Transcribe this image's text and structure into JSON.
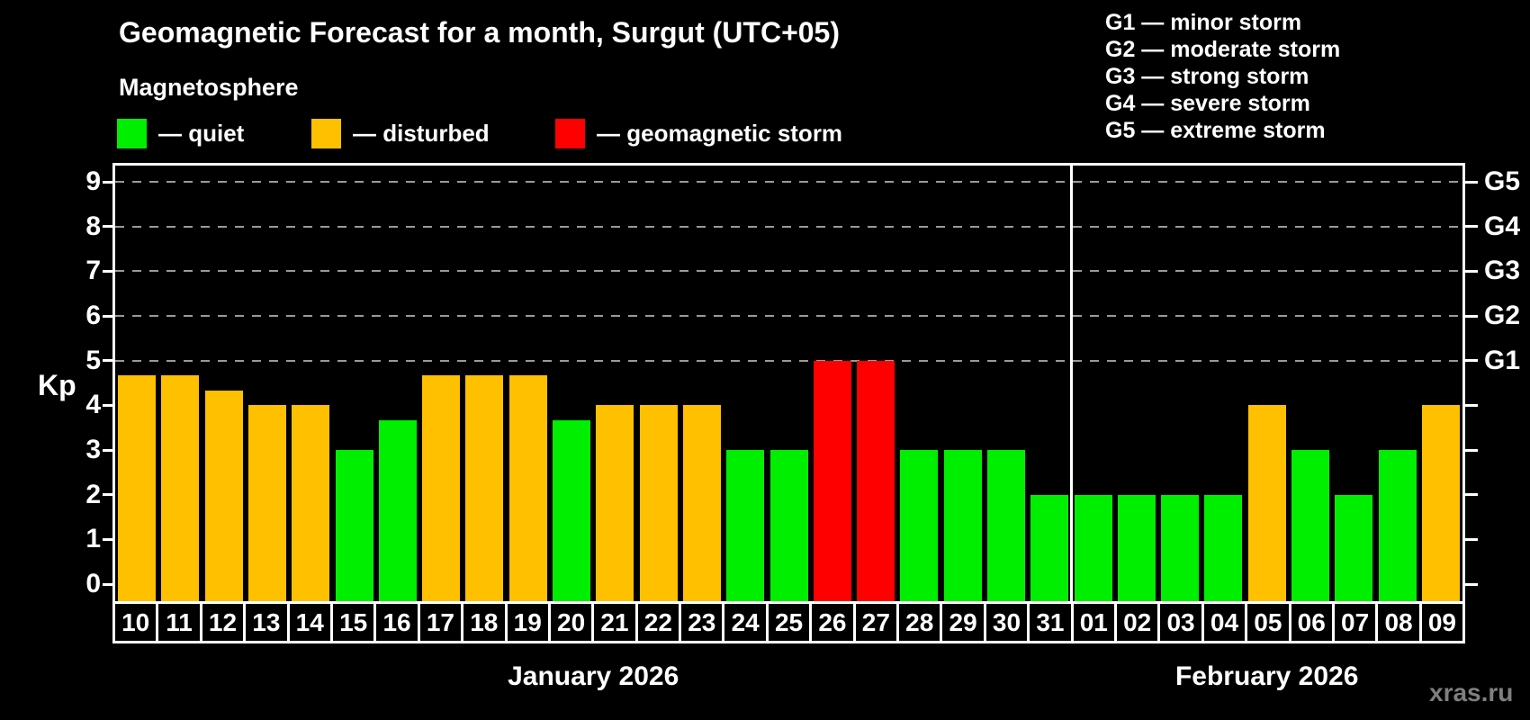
{
  "header": {
    "title": "Geomagnetic Forecast for a month, Surgut (UTC+05)",
    "subtitle": "Magnetosphere"
  },
  "legend": {
    "items": [
      {
        "key": "quiet",
        "label": "— quiet"
      },
      {
        "key": "disturbed",
        "label": "— disturbed"
      },
      {
        "key": "storm",
        "label": "— geomagnetic storm"
      }
    ]
  },
  "g_legend": {
    "items": [
      {
        "code": "G1",
        "text": "G1 — minor storm"
      },
      {
        "code": "G2",
        "text": "G2 — moderate storm"
      },
      {
        "code": "G3",
        "text": "G3 — strong storm"
      },
      {
        "code": "G4",
        "text": "G4 — severe storm"
      },
      {
        "code": "G5",
        "text": "G5 — extreme storm"
      }
    ]
  },
  "watermark": "xras.ru",
  "colors": {
    "quiet": "#00ee00",
    "disturbed": "#ffc000",
    "storm": "#ff0000",
    "grid": "#9a9a9a",
    "axis": "#ffffff",
    "background": "#000000",
    "watermark": "#7f7f7f"
  },
  "chart_data": {
    "type": "bar",
    "title": "Geomagnetic Forecast for a month, Surgut (UTC+05)",
    "subtitle": "Magnetosphere",
    "ylabel": "Kp",
    "ylim": [
      0,
      9
    ],
    "yticks": [
      0,
      1,
      2,
      3,
      4,
      5,
      6,
      7,
      8,
      9
    ],
    "gridlines_at_kp": [
      5,
      6,
      7,
      8,
      9
    ],
    "right_axis_labels": [
      {
        "kp": 5,
        "label": "G1"
      },
      {
        "kp": 6,
        "label": "G2"
      },
      {
        "kp": 7,
        "label": "G3"
      },
      {
        "kp": 8,
        "label": "G4"
      },
      {
        "kp": 9,
        "label": "G5"
      }
    ],
    "months": [
      {
        "label": "January 2026",
        "start_index": 0,
        "end_index": 21
      },
      {
        "label": "February 2026",
        "start_index": 22,
        "end_index": 30
      }
    ],
    "bars": [
      {
        "day": "10",
        "kp": 4.67,
        "status": "disturbed"
      },
      {
        "day": "11",
        "kp": 4.67,
        "status": "disturbed"
      },
      {
        "day": "12",
        "kp": 4.33,
        "status": "disturbed"
      },
      {
        "day": "13",
        "kp": 4.0,
        "status": "disturbed"
      },
      {
        "day": "14",
        "kp": 4.0,
        "status": "disturbed"
      },
      {
        "day": "15",
        "kp": 3.0,
        "status": "quiet"
      },
      {
        "day": "16",
        "kp": 3.67,
        "status": "quiet"
      },
      {
        "day": "17",
        "kp": 4.67,
        "status": "disturbed"
      },
      {
        "day": "18",
        "kp": 4.67,
        "status": "disturbed"
      },
      {
        "day": "19",
        "kp": 4.67,
        "status": "disturbed"
      },
      {
        "day": "20",
        "kp": 3.67,
        "status": "quiet"
      },
      {
        "day": "21",
        "kp": 4.0,
        "status": "disturbed"
      },
      {
        "day": "22",
        "kp": 4.0,
        "status": "disturbed"
      },
      {
        "day": "23",
        "kp": 4.0,
        "status": "disturbed"
      },
      {
        "day": "24",
        "kp": 3.0,
        "status": "quiet"
      },
      {
        "day": "25",
        "kp": 3.0,
        "status": "quiet"
      },
      {
        "day": "26",
        "kp": 5.0,
        "status": "storm"
      },
      {
        "day": "27",
        "kp": 5.0,
        "status": "storm"
      },
      {
        "day": "28",
        "kp": 3.0,
        "status": "quiet"
      },
      {
        "day": "29",
        "kp": 3.0,
        "status": "quiet"
      },
      {
        "day": "30",
        "kp": 3.0,
        "status": "quiet"
      },
      {
        "day": "31",
        "kp": 2.0,
        "status": "quiet"
      },
      {
        "day": "01",
        "kp": 2.0,
        "status": "quiet"
      },
      {
        "day": "02",
        "kp": 2.0,
        "status": "quiet"
      },
      {
        "day": "03",
        "kp": 2.0,
        "status": "quiet"
      },
      {
        "day": "04",
        "kp": 2.0,
        "status": "quiet"
      },
      {
        "day": "05",
        "kp": 4.0,
        "status": "disturbed"
      },
      {
        "day": "06",
        "kp": 3.0,
        "status": "quiet"
      },
      {
        "day": "07",
        "kp": 2.0,
        "status": "quiet"
      },
      {
        "day": "08",
        "kp": 3.0,
        "status": "quiet"
      },
      {
        "day": "09",
        "kp": 4.0,
        "status": "disturbed"
      }
    ]
  }
}
